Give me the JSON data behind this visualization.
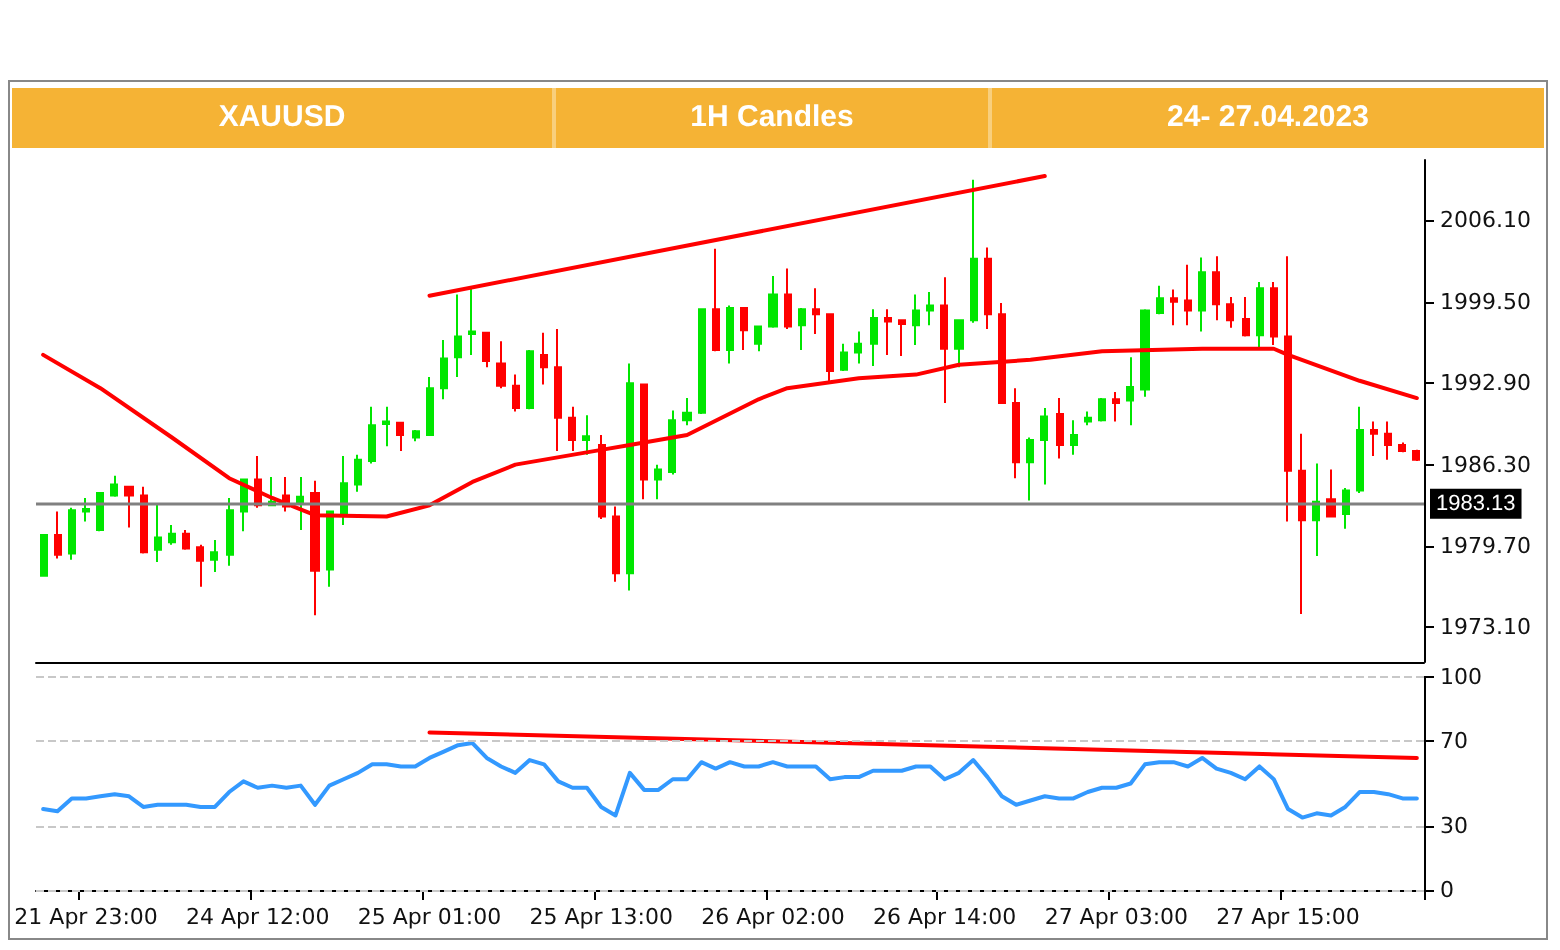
{
  "chart_data": [
    {
      "type": "candlestick",
      "title": "XAUUSD",
      "subtitle": "1H Candles",
      "annotations": [
        "24- 27.04.2023"
      ],
      "categories": [
        null,
        null,
        null,
        null,
        null,
        null,
        null,
        null,
        null,
        null,
        null,
        null,
        null,
        null,
        null,
        null,
        null,
        null,
        null,
        null,
        null,
        null,
        null,
        null,
        null,
        null,
        null,
        null,
        null,
        null,
        null,
        null,
        null,
        null,
        null,
        null,
        null,
        null,
        null,
        null,
        null,
        null,
        null,
        null,
        null,
        null,
        null,
        null,
        null,
        null,
        null,
        null,
        null,
        null,
        null,
        null,
        null,
        null,
        null,
        null,
        null,
        null,
        null,
        null,
        null,
        null,
        null,
        null,
        null,
        null,
        null,
        null,
        null,
        null,
        null,
        null,
        null,
        null,
        null,
        null,
        null,
        null,
        null,
        null,
        null,
        null,
        null,
        null,
        null,
        null,
        null,
        null,
        null,
        null,
        null,
        null,
        null
      ],
      "tick_labels": "y",
      "marker": "none",
      "ylim": [
        1970.3,
        2011.0
      ],
      "yticks": [
        {
          "value": 1973.1,
          "label": "1973.10"
        },
        {
          "value": 1979.7,
          "label": "1979.70"
        },
        {
          "value": 1986.3,
          "label": "1986.30"
        },
        {
          "value": 1992.9,
          "label": "1992.90"
        },
        {
          "value": 1999.5,
          "label": "1999.50"
        },
        {
          "value": 2006.1,
          "label": "2006.10"
        }
      ],
      "ohlc": [
        [
          1977.3,
          1980.6,
          1977.3,
          1980.6
        ],
        [
          1980.6,
          1982.5,
          1978.7,
          1979.0
        ],
        [
          1979.1,
          1982.8,
          1978.6,
          1982.6
        ],
        [
          1982.5,
          1983.6,
          1981.7,
          1982.7
        ],
        [
          1981.0,
          1984.0,
          1980.9,
          1984.0
        ],
        [
          1983.8,
          1985.4,
          1983.7,
          1984.7
        ],
        [
          1984.5,
          1984.5,
          1981.2,
          1983.8
        ],
        [
          1983.8,
          1984.5,
          1979.1,
          1979.2
        ],
        [
          1979.4,
          1983.1,
          1978.4,
          1980.4
        ],
        [
          1980.0,
          1981.4,
          1979.8,
          1980.7
        ],
        [
          1980.7,
          1981.0,
          1979.4,
          1979.5
        ],
        [
          1979.6,
          1979.8,
          1976.4,
          1978.5
        ],
        [
          1978.6,
          1980.2,
          1977.6,
          1979.2
        ],
        [
          1979.0,
          1983.6,
          1978.1,
          1982.6
        ],
        [
          1982.5,
          1985.1,
          1980.9,
          1985.1
        ],
        [
          1985.1,
          1987.0,
          1982.8,
          1983.0
        ],
        [
          1983.0,
          1985.3,
          1983.0,
          1983.3
        ],
        [
          1983.8,
          1985.3,
          1982.5,
          1982.9
        ],
        [
          1983.1,
          1985.3,
          1981.0,
          1983.7
        ],
        [
          1984.0,
          1985.0,
          1974.1,
          1977.7
        ],
        [
          1977.8,
          1982.5,
          1976.4,
          1982.5
        ],
        [
          1982.3,
          1987.0,
          1981.4,
          1984.8
        ],
        [
          1984.7,
          1987.1,
          1984.1,
          1986.7
        ],
        [
          1986.6,
          1991.0,
          1986.4,
          1989.5
        ],
        [
          1989.6,
          1991.0,
          1987.8,
          1989.8
        ],
        [
          1989.7,
          1989.7,
          1987.4,
          1988.7
        ],
        [
          1988.5,
          1989.1,
          1988.2,
          1989.0
        ],
        [
          1988.7,
          1993.4,
          1988.7,
          1992.5
        ],
        [
          1992.5,
          1996.4,
          1991.6,
          1994.9
        ],
        [
          1995.0,
          2000.1,
          1993.4,
          1996.7
        ],
        [
          1996.9,
          2000.7,
          1995.2,
          1997.1
        ],
        [
          1997.0,
          1997.0,
          1994.2,
          1994.7
        ],
        [
          1994.5,
          1996.3,
          1992.5,
          1992.7
        ],
        [
          1992.7,
          1993.6,
          1990.6,
          1990.9
        ],
        [
          1990.9,
          1995.6,
          1990.8,
          1995.5
        ],
        [
          1995.2,
          1997.0,
          1992.8,
          1994.2
        ],
        [
          1994.2,
          1997.3,
          1987.4,
          1990.1
        ],
        [
          1990.1,
          1991.0,
          1987.4,
          1988.3
        ],
        [
          1988.3,
          1990.3,
          1987.1,
          1988.6
        ],
        [
          1987.9,
          1988.7,
          1981.9,
          1982.1
        ],
        [
          1982.1,
          1982.9,
          1976.8,
          1977.5
        ],
        [
          1977.5,
          1994.5,
          1976.1,
          1992.9
        ],
        [
          1992.8,
          1992.8,
          1983.5,
          1985.1
        ],
        [
          1985.1,
          1986.3,
          1983.5,
          1985.9
        ],
        [
          1985.7,
          1990.7,
          1985.5,
          1989.9
        ],
        [
          1989.9,
          1991.7,
          1989.5,
          1990.5
        ],
        [
          1990.5,
          1998.9,
          1990.4,
          1998.9
        ],
        [
          1998.9,
          2003.8,
          1995.5,
          1995.6
        ],
        [
          1995.6,
          1999.2,
          1994.5,
          1999.0
        ],
        [
          1999.0,
          1999.0,
          1995.6,
          1997.2
        ],
        [
          1996.1,
          1997.5,
          1995.5,
          1997.5
        ],
        [
          1997.5,
          2001.6,
          1997.4,
          2000.1
        ],
        [
          2000.1,
          2002.2,
          1997.3,
          1997.5
        ],
        [
          1997.6,
          1999.0,
          1995.6,
          1998.9
        ],
        [
          1998.9,
          2000.6,
          1996.9,
          1998.5
        ],
        [
          1998.5,
          1998.5,
          1992.9,
          1993.9
        ],
        [
          1994.0,
          1996.1,
          1993.9,
          1995.4
        ],
        [
          1995.4,
          1997.1,
          1994.5,
          1996.1
        ],
        [
          1996.1,
          1998.9,
          1994.3,
          1998.2
        ],
        [
          1998.2,
          1998.9,
          1995.2,
          1997.9
        ],
        [
          1998.0,
          1998.0,
          1995.1,
          1997.7
        ],
        [
          1997.6,
          2000.1,
          1996.0,
          1998.8
        ],
        [
          1998.8,
          2000.3,
          1997.6,
          1999.2
        ],
        [
          1999.2,
          2001.5,
          1991.3,
          1995.7
        ],
        [
          1995.7,
          1998.0,
          1994.2,
          1998.0
        ],
        [
          1998.0,
          2009.4,
          1997.8,
          2003.0
        ],
        [
          2003.0,
          2003.9,
          1997.3,
          1998.5
        ],
        [
          1998.5,
          1999.4,
          1991.3,
          1991.3
        ],
        [
          1991.3,
          1992.5,
          1985.2,
          1986.5
        ],
        [
          1986.5,
          1988.5,
          1983.4,
          1988.3
        ],
        [
          1988.3,
          1990.9,
          1984.7,
          1990.2
        ],
        [
          1990.4,
          1991.7,
          1986.8,
          1987.9
        ],
        [
          1987.9,
          1989.9,
          1987.1,
          1988.7
        ],
        [
          1989.8,
          1990.6,
          1989.5,
          1990.1
        ],
        [
          1989.9,
          1991.7,
          1989.8,
          1991.6
        ],
        [
          1991.6,
          1992.2,
          1989.8,
          1991.3
        ],
        [
          1991.5,
          1995.0,
          1989.5,
          1992.6
        ],
        [
          1992.4,
          1998.9,
          1991.8,
          1998.8
        ],
        [
          1998.6,
          2000.8,
          1998.5,
          1999.8
        ],
        [
          1999.8,
          2000.5,
          1997.6,
          1999.5
        ],
        [
          1999.6,
          2002.5,
          1997.6,
          1998.8
        ],
        [
          1998.8,
          2003.1,
          1997.1,
          2001.9
        ],
        [
          2001.9,
          2003.2,
          1998.0,
          1999.3
        ],
        [
          1999.3,
          1999.9,
          1997.4,
          1998.0
        ],
        [
          1998.1,
          1999.9,
          1996.7,
          1996.8
        ],
        [
          1996.8,
          2001.1,
          1995.8,
          2000.6
        ],
        [
          2000.6,
          2001.1,
          1996.0,
          1996.7
        ],
        [
          1996.7,
          2003.2,
          1981.7,
          1985.8
        ],
        [
          1985.8,
          1988.8,
          1974.2,
          1981.8
        ],
        [
          1981.8,
          1986.4,
          1978.9,
          1983.3
        ],
        [
          1983.5,
          1985.9,
          1982.1,
          1982.1
        ],
        [
          1982.3,
          1984.4,
          1981.1,
          1984.2
        ],
        [
          1984.2,
          1991.0,
          1984.0,
          1989.1
        ],
        [
          1989.1,
          1989.8,
          1987.0,
          1988.8
        ],
        [
          1988.8,
          1989.8,
          1986.7,
          1987.9
        ],
        [
          1987.9,
          1988.1,
          1987.3,
          1987.4
        ],
        [
          1987.4,
          1987.5,
          1986.6,
          1986.7
        ]
      ],
      "colors": [
        "#00e600",
        "#ff0000",
        "#00e600",
        "#00e600",
        "#00e600",
        "#00e600",
        "#ff0000",
        "#ff0000",
        "#00e600",
        "#00e600",
        "#ff0000",
        "#ff0000",
        "#00e600",
        "#00e600",
        "#00e600",
        "#ff0000",
        "#00e600",
        "#ff0000",
        "#00e600",
        "#ff0000",
        "#00e600",
        "#00e600",
        "#00e600",
        "#00e600",
        "#00e600",
        "#ff0000",
        "#00e600",
        "#00e600",
        "#00e600",
        "#00e600",
        "#00e600",
        "#ff0000",
        "#ff0000",
        "#ff0000",
        "#00e600",
        "#ff0000",
        "#ff0000",
        "#ff0000",
        "#00e600",
        "#ff0000",
        "#ff0000",
        "#00e600",
        "#ff0000",
        "#00e600",
        "#00e600",
        "#00e600",
        "#00e600",
        "#ff0000",
        "#00e600",
        "#ff0000",
        "#00e600",
        "#00e600",
        "#ff0000",
        "#00e600",
        "#ff0000",
        "#ff0000",
        "#00e600",
        "#00e600",
        "#00e600",
        "#ff0000",
        "#ff0000",
        "#00e600",
        "#00e600",
        "#ff0000",
        "#00e600",
        "#00e600",
        "#ff0000",
        "#ff0000",
        "#ff0000",
        "#00e600",
        "#00e600",
        "#ff0000",
        "#00e600",
        "#00e600",
        "#00e600",
        "#ff0000",
        "#00e600",
        "#00e600",
        "#00e600",
        "#ff0000",
        "#ff0000",
        "#00e600",
        "#ff0000",
        "#ff0000",
        "#ff0000",
        "#00e600",
        "#ff0000",
        "#ff0000",
        "#ff0000",
        "#00e600",
        "#ff0000",
        "#00e600",
        "#00e600",
        "#ff0000",
        "#ff0000",
        "#ff0000",
        "#ff0000"
      ],
      "series": [
        {
          "type": "line",
          "color": "#ff0000",
          "values": [
            1995.2,
            null,
            null,
            null,
            1992.5,
            null,
            null,
            null,
            null,
            1988.5,
            null,
            null,
            null,
            1985.2,
            null,
            null,
            1983.6,
            null,
            null,
            1982.2,
            null,
            null,
            null,
            null,
            1982.1,
            null,
            null,
            1983.0,
            null,
            null,
            1984.9,
            null,
            null,
            1986.3,
            null,
            null,
            null,
            null,
            null,
            1987.5,
            null,
            1987.9,
            null,
            null,
            null,
            1988.7,
            null,
            null,
            null,
            null,
            1991.6,
            null,
            1992.5,
            null,
            null,
            null,
            null,
            1993.3,
            null,
            null,
            null,
            1993.6,
            null,
            null,
            1994.4,
            null,
            null,
            null,
            null,
            1994.8,
            null,
            null,
            null,
            null,
            1995.5,
            null,
            null,
            null,
            null,
            null,
            null,
            1995.7,
            null,
            null,
            null,
            null,
            1995.7,
            1995.2,
            null,
            null,
            null,
            null,
            1993.1,
            null,
            null,
            null,
            1991.7
          ]
        },
        {
          "type": "line",
          "color": "#ff0000",
          "values": [
            null,
            null,
            null,
            null,
            null,
            null,
            null,
            null,
            null,
            null,
            null,
            null,
            null,
            null,
            null,
            null,
            null,
            null,
            null,
            null,
            null,
            null,
            null,
            null,
            null,
            null,
            null,
            2000.0,
            null,
            null,
            null,
            null,
            null,
            null,
            null,
            null,
            null,
            null,
            null,
            null,
            null,
            null,
            null,
            null,
            null,
            null,
            null,
            null,
            null,
            null,
            null,
            null,
            null,
            null,
            null,
            null,
            null,
            null,
            null,
            null,
            null,
            null,
            null,
            null,
            null,
            null,
            null,
            null,
            null,
            null,
            2009.7,
            null,
            null,
            null,
            null,
            null,
            null,
            null,
            null,
            null,
            null,
            null,
            null,
            null,
            null,
            null,
            null,
            null,
            null,
            null,
            null,
            null,
            null,
            null,
            null,
            null,
            null
          ]
        }
      ],
      "ref_lines": [
        {
          "axis": "y",
          "value": 1983.13,
          "label": "1983.13",
          "color": "#808080"
        }
      ]
    },
    {
      "type": "line",
      "marker": "none",
      "grid": "y",
      "categories": [
        null,
        null,
        null,
        "21 Apr 23:00",
        null,
        null,
        null,
        null,
        null,
        null,
        null,
        null,
        null,
        null,
        null,
        "24 Apr 12:00",
        null,
        null,
        null,
        null,
        null,
        null,
        null,
        null,
        null,
        null,
        null,
        "25 Apr 01:00",
        null,
        null,
        null,
        null,
        null,
        null,
        null,
        null,
        null,
        null,
        null,
        "25 Apr 13:00",
        null,
        null,
        null,
        null,
        null,
        null,
        null,
        null,
        null,
        null,
        null,
        "26 Apr 02:00",
        null,
        null,
        null,
        null,
        null,
        null,
        null,
        null,
        null,
        null,
        null,
        "26 Apr 14:00",
        null,
        null,
        null,
        null,
        null,
        null,
        null,
        null,
        null,
        null,
        null,
        "27 Apr 03:00",
        null,
        null,
        null,
        null,
        null,
        null,
        null,
        null,
        null,
        null,
        null,
        "27 Apr 15:00",
        null,
        null,
        null,
        null,
        null,
        null,
        null,
        null,
        null
      ],
      "ylim": [
        0,
        100
      ],
      "yticks": [
        0,
        30,
        70,
        100
      ],
      "series": [
        {
          "color": "#3399ff",
          "values": [
            38,
            37,
            43,
            43,
            44,
            45,
            44,
            39,
            40,
            40,
            40,
            39,
            39,
            46,
            51,
            48,
            49,
            48,
            49,
            40,
            49,
            52,
            55,
            59,
            59,
            58,
            58,
            62,
            65,
            68,
            69,
            62,
            58,
            55,
            61,
            59,
            51,
            48,
            48,
            39,
            35,
            55,
            47,
            47,
            52,
            52,
            60,
            57,
            60,
            58,
            58,
            60,
            58,
            58,
            58,
            52,
            53,
            53,
            56,
            56,
            56,
            58,
            58,
            52,
            55,
            61,
            53,
            44,
            40,
            42,
            44,
            43,
            43,
            46,
            48,
            48,
            50,
            59,
            60,
            60,
            58,
            62,
            57,
            55,
            52,
            58,
            52,
            38,
            34,
            36,
            35,
            39,
            46,
            46,
            45,
            43,
            43
          ]
        },
        {
          "color": "#ff0000",
          "values": [
            null,
            null,
            null,
            null,
            null,
            null,
            null,
            null,
            null,
            null,
            null,
            null,
            null,
            null,
            null,
            null,
            null,
            null,
            null,
            null,
            null,
            null,
            null,
            null,
            null,
            null,
            null,
            74,
            null,
            null,
            null,
            null,
            null,
            null,
            null,
            null,
            null,
            null,
            null,
            null,
            null,
            null,
            null,
            null,
            null,
            null,
            null,
            null,
            null,
            null,
            null,
            null,
            null,
            null,
            null,
            null,
            null,
            null,
            null,
            null,
            null,
            null,
            null,
            null,
            null,
            null,
            null,
            null,
            null,
            null,
            null,
            null,
            null,
            null,
            null,
            null,
            null,
            null,
            null,
            null,
            null,
            null,
            null,
            null,
            null,
            null,
            null,
            null,
            null,
            null,
            null,
            null,
            null,
            null,
            null,
            null,
            62
          ]
        }
      ]
    }
  ]
}
